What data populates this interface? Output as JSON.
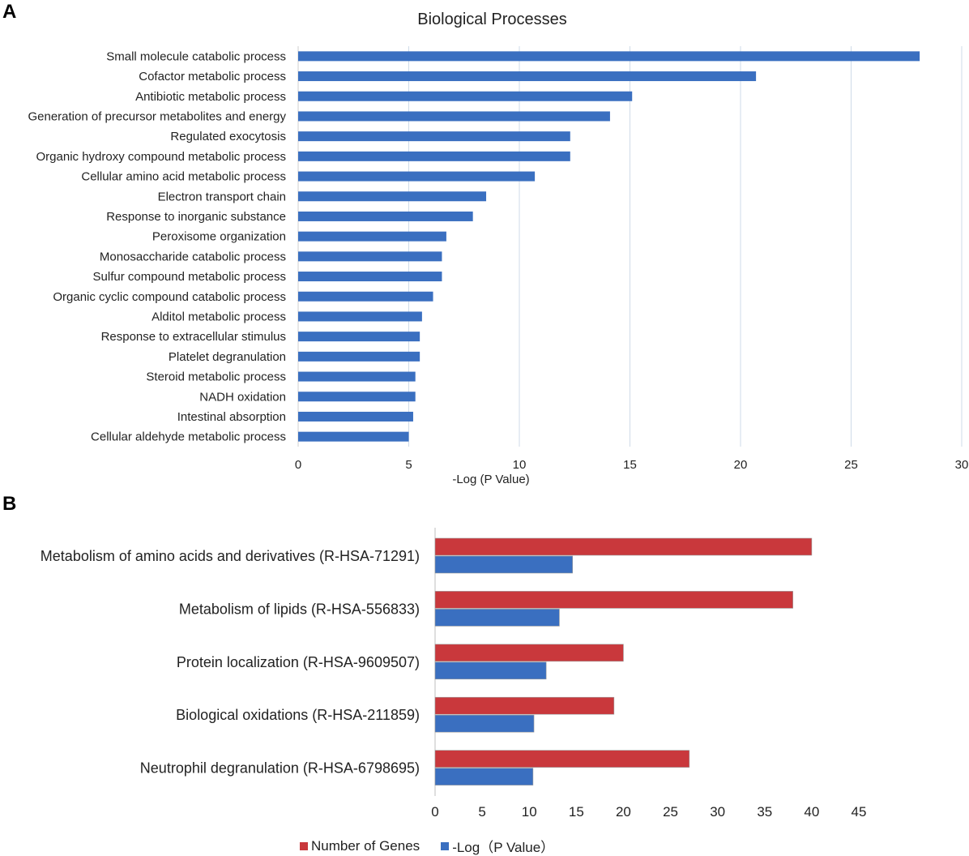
{
  "panels": {
    "a": "A",
    "b": "B"
  },
  "chart_data": [
    {
      "type": "bar",
      "orientation": "horizontal",
      "title": "Biological Processes",
      "xlabel": "-Log (P Value)",
      "ylabel": "",
      "xlim": [
        0,
        30
      ],
      "xticks": [
        0,
        5,
        10,
        15,
        20,
        25,
        30
      ],
      "grid": true,
      "color": "#3a6fc0",
      "categories": [
        "Small molecule catabolic process",
        "Cofactor metabolic process",
        "Antibiotic metabolic process",
        "Generation of precursor metabolites and energy",
        "Regulated exocytosis",
        "Organic hydroxy compound metabolic process",
        "Cellular amino acid metabolic process",
        "Electron transport chain",
        "Response to inorganic substance",
        "Peroxisome organization",
        "Monosaccharide catabolic process",
        "Sulfur compound metabolic process",
        "Organic cyclic compound catabolic process",
        "Alditol metabolic process",
        "Response to extracellular stimulus",
        "Platelet degranulation",
        "Steroid metabolic process",
        "NADH oxidation",
        "Intestinal absorption",
        "Cellular aldehyde metabolic process"
      ],
      "values": [
        28.1,
        20.7,
        15.1,
        14.1,
        12.3,
        12.3,
        10.7,
        8.5,
        7.9,
        6.7,
        6.5,
        6.5,
        6.1,
        5.6,
        5.5,
        5.5,
        5.3,
        5.3,
        5.2,
        5.0
      ]
    },
    {
      "type": "bar",
      "orientation": "horizontal",
      "title": "",
      "xlabel": "",
      "xlim": [
        0,
        45
      ],
      "xticks": [
        0,
        5,
        10,
        15,
        20,
        25,
        30,
        35,
        40,
        45
      ],
      "grid": false,
      "legend_position": "bottom",
      "categories": [
        "Metabolism of amino acids and derivatives (R-HSA-71291)",
        "Metabolism of lipids (R-HSA-556833)",
        "Protein localization (R-HSA-9609507)",
        "Biological oxidations (R-HSA-211859)",
        "Neutrophil degranulation (R-HSA-6798695)"
      ],
      "series": [
        {
          "name": "Number of Genes",
          "color": "#c9383c",
          "values": [
            40,
            38,
            20,
            19,
            27
          ]
        },
        {
          "name": "-Log（P Value）",
          "color": "#3a6fc0",
          "values": [
            14.6,
            13.2,
            11.8,
            10.5,
            10.4
          ]
        }
      ]
    }
  ]
}
